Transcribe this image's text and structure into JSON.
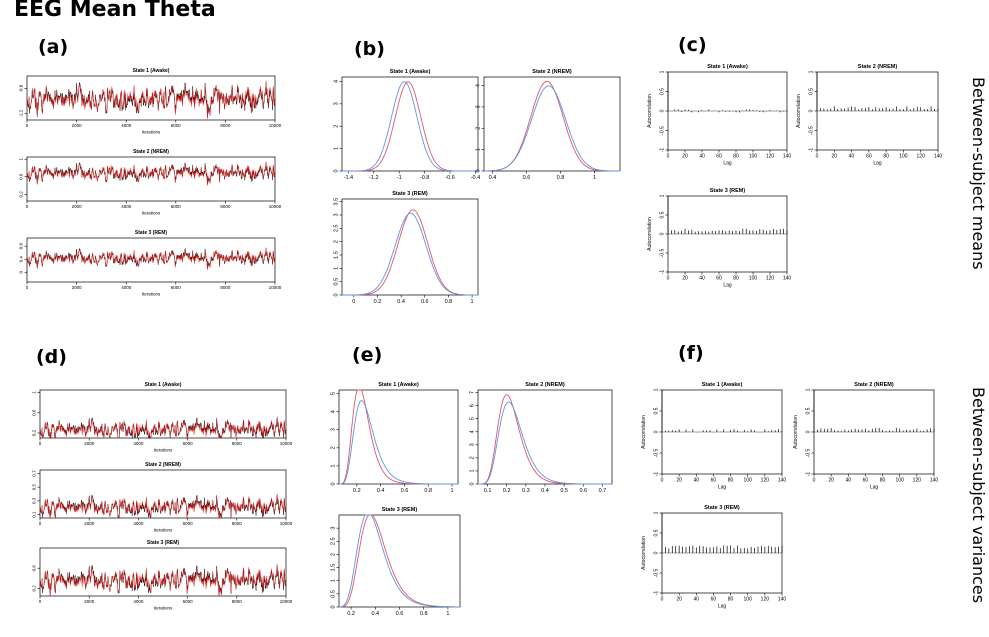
{
  "title": "EEG Mean Theta",
  "row_labels": [
    "Between-subject means",
    "Between-subject variances"
  ],
  "panel_labels": [
    "(a)",
    "(b)",
    "(c)",
    "(d)",
    "(e)",
    "(f)"
  ],
  "colors": {
    "chain1": "#000000",
    "chain2": "#e8201f",
    "density1": "#e0556e",
    "density2": "#5f95e0"
  },
  "chart_data": [
    {
      "id": "a",
      "type": "line",
      "subtype": "mcmc-traceplot",
      "series_colors": [
        "black",
        "red"
      ],
      "panels": [
        {
          "title": "State 1 (Awake)",
          "xlabel": "Iterations",
          "xlim": [
            0,
            10000
          ],
          "xticks": [
            0,
            2000,
            4000,
            6000,
            8000,
            10000
          ],
          "ylim": [
            -1.3,
            -0.6
          ],
          "yticks": [
            -1.2,
            -0.8
          ],
          "center": -0.95,
          "spread": 0.09
        },
        {
          "title": "State 2 (NREM)",
          "xlabel": "Iterations",
          "xlim": [
            0,
            10000
          ],
          "xticks": [
            0,
            2000,
            4000,
            6000,
            8000,
            10000
          ],
          "ylim": [
            0.05,
            1.05
          ],
          "yticks": [
            0.2,
            0.6,
            1.0
          ],
          "center": 0.7,
          "spread": 0.08
        },
        {
          "title": "State 3 (REM)",
          "xlabel": "Iterations",
          "xlim": [
            0,
            10000
          ],
          "xticks": [
            0,
            2000,
            4000,
            6000,
            8000,
            10000
          ],
          "ylim": [
            -0.3,
            1.05
          ],
          "yticks": [
            0.0,
            0.4,
            0.8
          ],
          "center": 0.45,
          "spread": 0.1
        }
      ]
    },
    {
      "id": "b",
      "type": "line",
      "subtype": "posterior-density",
      "panels": [
        {
          "title": "State 1 (Awake)",
          "xlim": [
            -1.45,
            -0.38
          ],
          "xticks": [
            -1.4,
            -1.2,
            -1.0,
            -0.8,
            -0.6,
            -0.4
          ],
          "ylim": [
            0,
            4.2
          ],
          "yticks": [
            0,
            1,
            2,
            3,
            4
          ],
          "series": [
            {
              "mean": -0.93,
              "sd": 0.1
            },
            {
              "mean": -0.96,
              "sd": 0.1
            }
          ]
        },
        {
          "title": "State 2 (NREM)",
          "xlim": [
            0.35,
            1.15
          ],
          "xticks": [
            0.4,
            0.6,
            0.8,
            1.0
          ],
          "ylim": [
            0,
            4.4
          ],
          "yticks": [
            0,
            1,
            2,
            3,
            4
          ],
          "series": [
            {
              "mean": 0.72,
              "sd": 0.095
            },
            {
              "mean": 0.73,
              "sd": 0.1
            }
          ]
        },
        {
          "title": "State 3 (REM)",
          "xlim": [
            -0.1,
            1.05
          ],
          "xticks": [
            0.0,
            0.2,
            0.4,
            0.6,
            0.8,
            1.0
          ],
          "ylim": [
            0,
            3.6
          ],
          "yticks": [
            0.0,
            0.5,
            1.0,
            1.5,
            2.0,
            2.5,
            3.0,
            3.5
          ],
          "series": [
            {
              "mean": 0.5,
              "sd": 0.125
            },
            {
              "mean": 0.48,
              "sd": 0.13
            }
          ]
        }
      ]
    },
    {
      "id": "c",
      "type": "bar",
      "subtype": "autocorrelation",
      "panels": [
        {
          "title": "State 1 (Awake)",
          "xlabel": "Lag",
          "ylabel": "Autocorrelation",
          "xlim": [
            0,
            140
          ],
          "xticks": [
            0,
            20,
            40,
            60,
            80,
            100,
            120,
            140
          ],
          "ylim": [
            -1.0,
            1.0
          ],
          "yticks": [
            -1.0,
            -0.5,
            0.0,
            0.5,
            1.0
          ],
          "acf_level": 0.0
        },
        {
          "title": "State 2 (NREM)",
          "xlabel": "Lag",
          "ylabel": "Autocorrelation",
          "xlim": [
            0,
            140
          ],
          "xticks": [
            0,
            20,
            40,
            60,
            80,
            100,
            120,
            140
          ],
          "ylim": [
            -1.0,
            1.0
          ],
          "yticks": [
            -1.0,
            -0.5,
            0.0,
            0.5,
            1.0
          ],
          "acf_level": 0.08
        },
        {
          "title": "State 3 (REM)",
          "xlabel": "Lag",
          "ylabel": "Autocorrelation",
          "xlim": [
            0,
            140
          ],
          "xticks": [
            0,
            20,
            40,
            60,
            80,
            100,
            120,
            140
          ],
          "ylim": [
            -1.0,
            1.0
          ],
          "yticks": [
            -1.0,
            -0.5,
            0.0,
            0.5,
            1.0
          ],
          "acf_level": 0.1
        }
      ]
    },
    {
      "id": "d",
      "type": "line",
      "subtype": "mcmc-traceplot",
      "series_colors": [
        "black",
        "red"
      ],
      "panels": [
        {
          "title": "State 1 (Awake)",
          "xlabel": "Iterations",
          "xlim": [
            0,
            10000
          ],
          "xticks": [
            0,
            2000,
            4000,
            6000,
            8000,
            10000
          ],
          "ylim": [
            0.1,
            1.05
          ],
          "yticks": [
            0.2,
            0.6,
            1.0
          ],
          "center": 0.28,
          "spread": 0.08
        },
        {
          "title": "State 2 (NREM)",
          "xlabel": "Iterations",
          "xlim": [
            0,
            10000
          ],
          "xticks": [
            0,
            2000,
            4000,
            6000,
            8000,
            10000
          ],
          "ylim": [
            0.05,
            0.75
          ],
          "yticks": [
            0.1,
            0.3,
            0.5,
            0.7
          ],
          "center": 0.22,
          "spread": 0.06
        },
        {
          "title": "State 3 (REM)",
          "xlabel": "Iterations",
          "xlim": [
            0,
            10000
          ],
          "xticks": [
            0,
            2000,
            4000,
            6000,
            8000,
            10000
          ],
          "ylim": [
            0.05,
            1.0
          ],
          "yticks": [
            0.2,
            0.6
          ],
          "center": 0.38,
          "spread": 0.1
        }
      ]
    },
    {
      "id": "e",
      "type": "line",
      "subtype": "posterior-density",
      "panels": [
        {
          "title": "State 1 (Awake)",
          "xlim": [
            0.05,
            1.05
          ],
          "xticks": [
            0.2,
            0.4,
            0.6,
            0.8,
            1.0
          ],
          "ylim": [
            0,
            5.2
          ],
          "yticks": [
            0,
            1,
            2,
            3,
            4,
            5
          ],
          "series": [
            {
              "mode": 0.22,
              "sigma": 0.32
            },
            {
              "mode": 0.24,
              "sigma": 0.34
            }
          ]
        },
        {
          "title": "State 2 (NREM)",
          "xlim": [
            0.05,
            0.75
          ],
          "xticks": [
            0.1,
            0.2,
            0.3,
            0.4,
            0.5,
            0.6,
            0.7
          ],
          "ylim": [
            0,
            7.2
          ],
          "yticks": [
            0,
            1,
            2,
            3,
            4,
            5,
            6,
            7
          ],
          "series": [
            {
              "mode": 0.2,
              "sigma": 0.28
            },
            {
              "mode": 0.21,
              "sigma": 0.29
            }
          ]
        },
        {
          "title": "State 3 (REM)",
          "xlim": [
            0.1,
            1.1
          ],
          "xticks": [
            0.2,
            0.4,
            0.6,
            0.8,
            1.0
          ],
          "ylim": [
            0,
            3.5
          ],
          "yticks": [
            0.0,
            0.5,
            1.0,
            1.5,
            2.0,
            2.5,
            3.0
          ],
          "series": [
            {
              "mode": 0.36,
              "sigma": 0.3
            },
            {
              "mode": 0.34,
              "sigma": 0.31
            }
          ]
        }
      ]
    },
    {
      "id": "f",
      "type": "bar",
      "subtype": "autocorrelation",
      "panels": [
        {
          "title": "State 1 (Awake)",
          "xlabel": "Lag",
          "ylabel": "Autocorrelation",
          "xlim": [
            0,
            140
          ],
          "xticks": [
            0,
            20,
            40,
            60,
            80,
            100,
            120,
            140
          ],
          "ylim": [
            -1.0,
            1.0
          ],
          "yticks": [
            -1.0,
            -0.5,
            0.0,
            0.5,
            1.0
          ],
          "acf_level": 0.03
        },
        {
          "title": "State 2 (NREM)",
          "xlabel": "Lag",
          "ylabel": "Autocorrelation",
          "xlim": [
            0,
            140
          ],
          "xticks": [
            0,
            20,
            40,
            60,
            80,
            100,
            120,
            140
          ],
          "ylim": [
            -1.0,
            1.0
          ],
          "yticks": [
            -1.0,
            -0.5,
            0.0,
            0.5,
            1.0
          ],
          "acf_level": 0.06
        },
        {
          "title": "State 3 (REM)",
          "xlabel": "Lag",
          "ylabel": "Autocorrelation",
          "xlim": [
            0,
            140
          ],
          "xticks": [
            0,
            20,
            40,
            60,
            80,
            100,
            120,
            140
          ],
          "ylim": [
            -1.0,
            1.0
          ],
          "yticks": [
            -1.0,
            -0.5,
            0.0,
            0.5,
            1.0
          ],
          "acf_level": 0.15
        }
      ]
    }
  ]
}
